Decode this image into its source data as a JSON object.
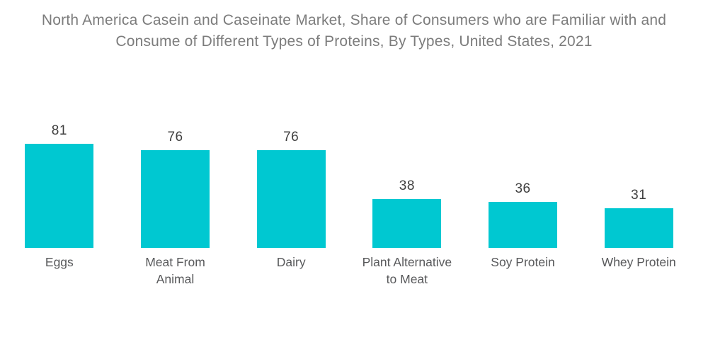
{
  "page": {
    "background_color": "#ffffff"
  },
  "title": {
    "text": "North America Casein and Caseinate Market, Share of Consumers who are Familiar with and Consume of Different Types of Proteins, By Types, United States, 2021",
    "lines": [
      "North America Casein and Caseinate Market, Share of Consumers who are Familiar with and",
      "Consume of Different Types of Proteins, By Types, United States, 2021"
    ],
    "color": "#7c7c7c"
  },
  "chart_data": {
    "type": "bar",
    "title": "North America Casein and Caseinate Market, Share of Consumers who are Familiar with and Consume of Different Types of Proteins, By Types, United States, 2021",
    "categories": [
      "Eggs",
      "Meat From Animal",
      "Dairy",
      "Plant Alternative to Meat",
      "Soy Protein",
      "Whey Protein"
    ],
    "values": [
      81,
      76,
      76,
      38,
      36,
      31
    ],
    "category_label_lines": [
      [
        "Eggs"
      ],
      [
        "Meat From",
        "Animal"
      ],
      [
        "Dairy"
      ],
      [
        "Plant Alternative",
        "to Meat"
      ],
      [
        "Soy Protein"
      ],
      [
        "Whey Protein"
      ]
    ],
    "xlabel": "",
    "ylabel": "",
    "ylim": [
      0,
      105
    ],
    "grid": false,
    "legend": "none",
    "axes_shown": false,
    "value_labels_position": "above bars",
    "bar_color": "#00c8d1",
    "value_label_color": "#3f3f3f",
    "category_label_color": "#58595b"
  }
}
